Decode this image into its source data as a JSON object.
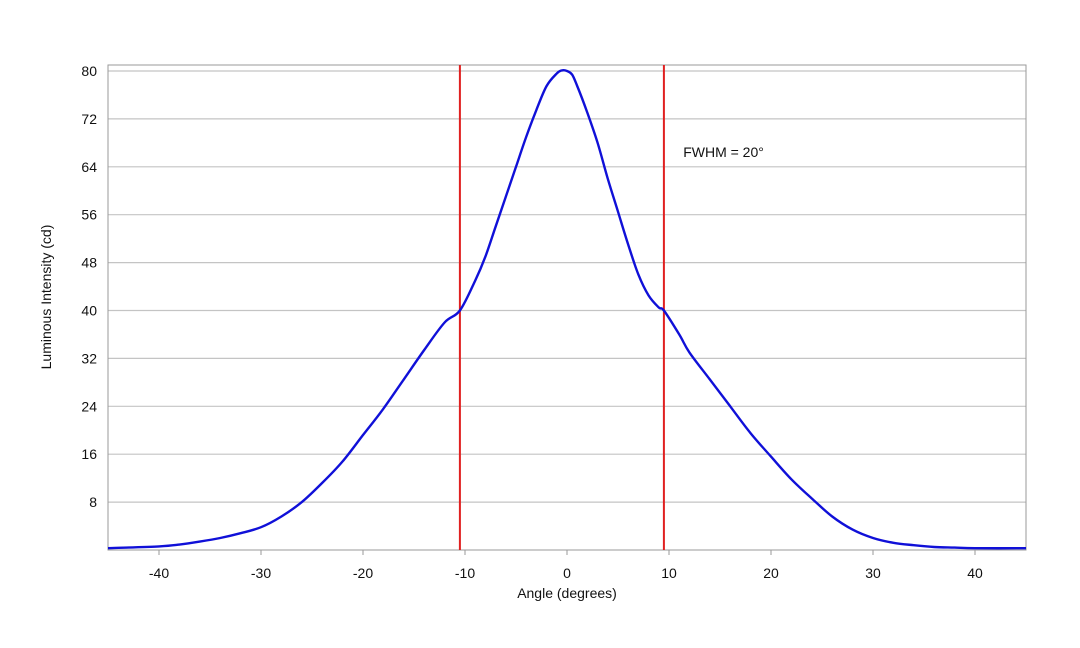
{
  "chart_data": {
    "type": "line",
    "title": "",
    "xlabel": "Angle (degrees)",
    "ylabel": "Luminous Intensity (cd)",
    "xlim": [
      -45,
      45
    ],
    "ylim": [
      0,
      81
    ],
    "xticks": [
      -40,
      -30,
      -20,
      -10,
      0,
      10,
      20,
      30,
      40
    ],
    "yticks": [
      8,
      16,
      24,
      32,
      40,
      48,
      56,
      64,
      72,
      80
    ],
    "grid": "horizontal",
    "series": [
      {
        "color": "#1010d8",
        "x": [
          -45,
          -40,
          -38,
          -36,
          -34,
          -32,
          -30,
          -28,
          -26,
          -24,
          -22,
          -20,
          -18,
          -16,
          -14,
          -12,
          -10.5,
          -9,
          -8,
          -7,
          -6,
          -5,
          -4,
          -3,
          -2,
          -1,
          -0.5,
          0,
          0.5,
          1,
          2,
          3,
          4,
          5,
          6,
          7,
          8,
          9,
          9.5,
          11,
          12,
          14,
          16,
          18,
          20,
          22,
          24,
          26,
          28,
          30,
          32,
          34,
          36,
          38,
          40,
          45
        ],
        "y": [
          0.3,
          0.6,
          0.9,
          1.4,
          2.0,
          2.8,
          3.8,
          5.6,
          8.0,
          11.2,
          14.8,
          19.2,
          23.6,
          28.5,
          33.4,
          38.0,
          40,
          45.0,
          49.0,
          54.0,
          59.0,
          64.0,
          69.0,
          73.5,
          77.5,
          79.6,
          80.1,
          80.0,
          79.4,
          77.5,
          73.0,
          68.0,
          62.0,
          56.5,
          51.0,
          46.0,
          42.5,
          40.5,
          40,
          36.0,
          33.0,
          28.5,
          24.0,
          19.5,
          15.6,
          11.8,
          8.6,
          5.6,
          3.4,
          2.0,
          1.2,
          0.8,
          0.5,
          0.4,
          0.3,
          0.3
        ]
      }
    ],
    "vlines": [
      {
        "x": -10.5,
        "color": "#e02020"
      },
      {
        "x": 9.5,
        "color": "#e02020"
      }
    ],
    "annotations": [
      {
        "text": "FWHM = 20°",
        "x": 11,
        "y": 68
      }
    ]
  }
}
